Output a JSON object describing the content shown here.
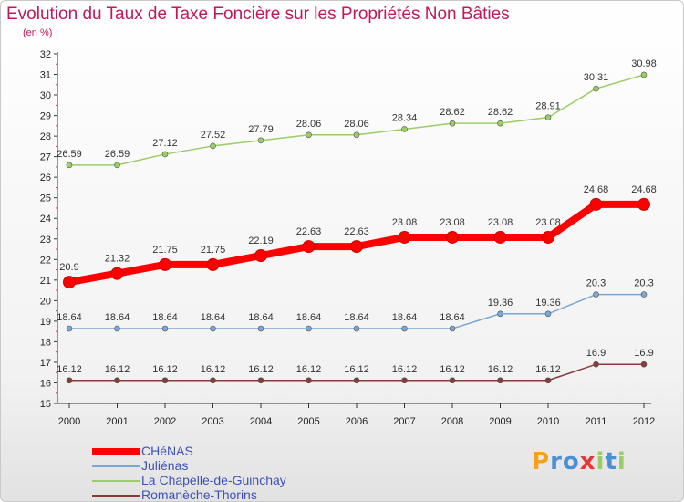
{
  "chart_data": {
    "type": "line",
    "title": "Evolution du Taux de Taxe Foncière sur les Propriétés Non Bâties",
    "ylabel": "(en %)",
    "xlabel": "",
    "categories": [
      "2000",
      "2001",
      "2002",
      "2003",
      "2004",
      "2005",
      "2006",
      "2007",
      "2008",
      "2009",
      "2010",
      "2011",
      "2012"
    ],
    "ylim": [
      15,
      32
    ],
    "yticks": [
      15,
      16,
      17,
      18,
      19,
      20,
      21,
      22,
      23,
      24,
      25,
      26,
      27,
      28,
      29,
      30,
      31,
      32
    ],
    "grid": false,
    "legend_position": "bottom-left",
    "series": [
      {
        "name": "CHéNAS",
        "color": "#ff0000",
        "emphasis": true,
        "values": [
          20.9,
          21.32,
          21.75,
          21.75,
          22.19,
          22.63,
          22.63,
          23.08,
          23.08,
          23.08,
          23.08,
          24.68,
          24.68
        ],
        "labels": [
          "20.9",
          "21.32",
          "21.75",
          "21.75",
          "22.19",
          "22.63",
          "22.63",
          "23.08",
          "23.08",
          "23.08",
          "23.08",
          "24.68",
          "24.68"
        ]
      },
      {
        "name": "Juliénas",
        "color": "#7ba7d4",
        "emphasis": false,
        "values": [
          18.64,
          18.64,
          18.64,
          18.64,
          18.64,
          18.64,
          18.64,
          18.64,
          18.64,
          19.36,
          19.36,
          20.3,
          20.3
        ],
        "labels": [
          "18.64",
          "18.64",
          "18.64",
          "18.64",
          "18.64",
          "18.64",
          "18.64",
          "18.64",
          "18.64",
          "19.36",
          "19.36",
          "20.3",
          "20.3"
        ]
      },
      {
        "name": "La Chapelle-de-Guinchay",
        "color": "#9ccc65",
        "emphasis": false,
        "values": [
          26.59,
          26.59,
          27.12,
          27.52,
          27.79,
          28.06,
          28.06,
          28.34,
          28.62,
          28.62,
          28.91,
          30.31,
          30.98
        ],
        "labels": [
          "26.59",
          "26.59",
          "27.12",
          "27.52",
          "27.79",
          "28.06",
          "28.06",
          "28.34",
          "28.62",
          "28.62",
          "28.91",
          "30.31",
          "30.98"
        ]
      },
      {
        "name": "Romanèche-Thorins",
        "color": "#8b3a3a",
        "emphasis": false,
        "values": [
          16.12,
          16.12,
          16.12,
          16.12,
          16.12,
          16.12,
          16.12,
          16.12,
          16.12,
          16.12,
          16.12,
          16.9,
          16.9
        ],
        "labels": [
          "16.12",
          "16.12",
          "16.12",
          "16.12",
          "16.12",
          "16.12",
          "16.12",
          "16.12",
          "16.12",
          "16.12",
          "16.12",
          "16.9",
          "16.9"
        ]
      }
    ]
  },
  "logo": {
    "text": "Proxiti",
    "letters": [
      "P",
      "r",
      "o",
      "x",
      "i",
      "t",
      "i"
    ],
    "colors": [
      "#f7a11a",
      "#4a90d9",
      "#4a90d9",
      "#e53935",
      "#9ccc65",
      "#4a90d9",
      "#9ccc65"
    ]
  }
}
